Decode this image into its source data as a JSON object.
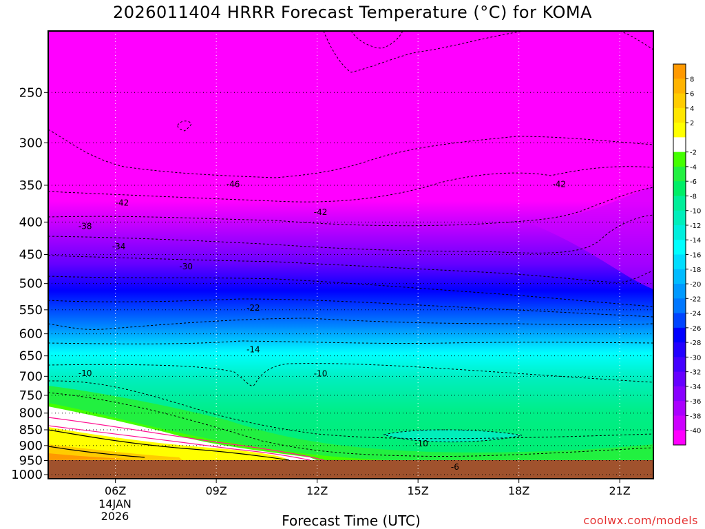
{
  "chart_data": {
    "type": "heatmap",
    "title": "2026011404 HRRR Forecast Temperature (°C) for KOMA",
    "xlabel": "Forecast Time (UTC)",
    "date_label_line1": "14JAN",
    "date_label_line2": "2026",
    "credit": "coolwx.com/models",
    "x_ticks": [
      "06Z",
      "09Z",
      "12Z",
      "15Z",
      "18Z",
      "21Z"
    ],
    "x_range_hours_utc": [
      4,
      22
    ],
    "y_ticks": [
      250,
      300,
      350,
      400,
      450,
      500,
      550,
      600,
      650,
      700,
      750,
      800,
      850,
      900,
      950,
      1000
    ],
    "y_range_hpa": [
      200,
      1015
    ],
    "y_scale": "log",
    "colorbar_labels": [
      "8",
      "6",
      "4",
      "2",
      "-2",
      "-4",
      "-6",
      "-8",
      "-10",
      "-12",
      "-14",
      "-16",
      "-18",
      "-20",
      "-22",
      "-24",
      "-26",
      "-28",
      "-30",
      "-32",
      "-34",
      "-36",
      "-38",
      "-40"
    ],
    "colorbar_colors": [
      "#ff9900",
      "#ffb300",
      "#ffcc00",
      "#ffe600",
      "#ffff00",
      "#ffffff",
      "#44ff00",
      "#22f040",
      "#00ee66",
      "#00ee99",
      "#00eebb",
      "#00eedd",
      "#00ffff",
      "#00ddff",
      "#00bbff",
      "#0099ff",
      "#0077ff",
      "#0044ff",
      "#0000ff",
      "#2200ff",
      "#4400ff",
      "#6600ff",
      "#8800ff",
      "#aa00ff",
      "#cc00ff",
      "#ff00ff"
    ],
    "contour_labels": [
      {
        "label": "-46",
        "x": 9.5,
        "p": 348
      },
      {
        "label": "-42",
        "x": 19.2,
        "p": 348
      },
      {
        "label": "-42",
        "x": 6.2,
        "p": 372
      },
      {
        "label": "-42",
        "x": 12.1,
        "p": 385
      },
      {
        "label": "-38",
        "x": 5.1,
        "p": 405
      },
      {
        "label": "-34",
        "x": 6.1,
        "p": 436
      },
      {
        "label": "-30",
        "x": 8.1,
        "p": 469
      },
      {
        "label": "-22",
        "x": 10.1,
        "p": 545
      },
      {
        "label": "-14",
        "x": 10.1,
        "p": 634
      },
      {
        "label": "-10",
        "x": 5.1,
        "p": 691
      },
      {
        "label": "-10",
        "x": 12.1,
        "p": 692
      },
      {
        "label": "-10",
        "x": 15.1,
        "p": 891
      },
      {
        "label": "-6",
        "x": 16.1,
        "p": 970
      }
    ],
    "grid": true
  }
}
